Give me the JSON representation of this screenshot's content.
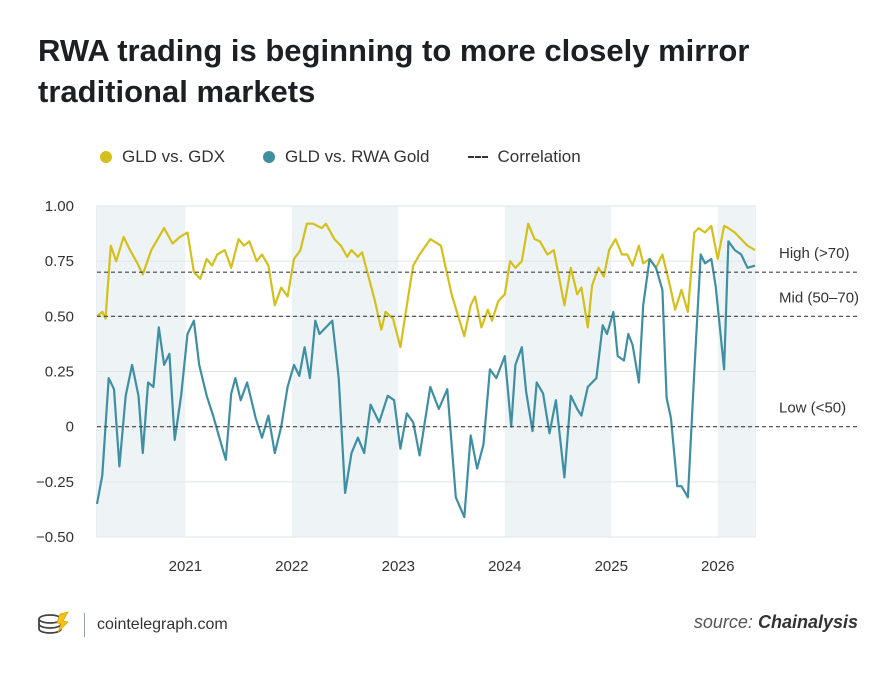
{
  "title": "RWA trading is beginning to more closely mirror traditional markets",
  "legend": [
    {
      "label": "GLD vs. GDX",
      "color": "#d4c01c",
      "kind": "dot"
    },
    {
      "label": "GLD vs. RWA Gold",
      "color": "#3f8fa3",
      "kind": "dot"
    },
    {
      "label": "Correlation",
      "color": "#333333",
      "kind": "dash"
    }
  ],
  "footer": {
    "site": "cointelegraph.com",
    "source_prefix": "source:",
    "source_name": "Chainalysis"
  },
  "chart_data": {
    "type": "line",
    "ylim": [
      -0.5,
      1.0
    ],
    "xlim": [
      2020.17,
      2026.35
    ],
    "y_ticks": [
      {
        "v": 1.0,
        "label": "1.00"
      },
      {
        "v": 0.75,
        "label": "0.75"
      },
      {
        "v": 0.5,
        "label": "0.50"
      },
      {
        "v": 0.25,
        "label": "0.25"
      },
      {
        "v": 0,
        "label": "0"
      },
      {
        "v": -0.25,
        "label": "−0.25"
      },
      {
        "v": -0.5,
        "label": "−0.50"
      }
    ],
    "x_ticks": [
      {
        "v": 2021,
        "label": "2021"
      },
      {
        "v": 2022,
        "label": "2022"
      },
      {
        "v": 2023,
        "label": "2023"
      },
      {
        "v": 2024,
        "label": "2024"
      },
      {
        "v": 2025,
        "label": "2025"
      },
      {
        "v": 2026,
        "label": "2026"
      }
    ],
    "shaded_years": [
      [
        2020.17,
        2021
      ],
      [
        2022,
        2023
      ],
      [
        2024,
        2025
      ],
      [
        2026,
        2026.35
      ]
    ],
    "reference_lines": [
      {
        "y": 0.7,
        "label": "High (>70)"
      },
      {
        "y": 0.5,
        "label": "Mid (50–70)"
      },
      {
        "y": 0,
        "label": "Low (<50)"
      }
    ],
    "series": [
      {
        "name": "GLD vs. GDX",
        "color": "#d4c01c",
        "x": [
          2020.17,
          2020.22,
          2020.25,
          2020.3,
          2020.35,
          2020.42,
          2020.48,
          2020.55,
          2020.6,
          2020.68,
          2020.74,
          2020.8,
          2020.88,
          2020.95,
          2021.02,
          2021.08,
          2021.14,
          2021.2,
          2021.25,
          2021.3,
          2021.37,
          2021.43,
          2021.5,
          2021.55,
          2021.6,
          2021.67,
          2021.72,
          2021.78,
          2021.84,
          2021.9,
          2021.96,
          2022.02,
          2022.08,
          2022.14,
          2022.2,
          2022.28,
          2022.32,
          2022.4,
          2022.46,
          2022.52,
          2022.56,
          2022.62,
          2022.66,
          2022.72,
          2022.78,
          2022.84,
          2022.88,
          2022.95,
          2023.02,
          2023.08,
          2023.14,
          2023.2,
          2023.3,
          2023.4,
          2023.5,
          2023.55,
          2023.62,
          2023.68,
          2023.72,
          2023.78,
          2023.84,
          2023.88,
          2023.94,
          2024.0,
          2024.05,
          2024.1,
          2024.16,
          2024.22,
          2024.28,
          2024.33,
          2024.4,
          2024.46,
          2024.52,
          2024.56,
          2024.62,
          2024.68,
          2024.72,
          2024.78,
          2024.82,
          2024.88,
          2024.93,
          2024.98,
          2025.04,
          2025.1,
          2025.15,
          2025.2,
          2025.26,
          2025.3,
          2025.36,
          2025.42,
          2025.48,
          2025.56,
          2025.6,
          2025.66,
          2025.72,
          2025.78,
          2025.82,
          2025.88,
          2025.94,
          2026.0,
          2026.06,
          2026.1,
          2026.16,
          2026.22,
          2026.28,
          2026.35
        ],
        "y": [
          0.5,
          0.52,
          0.49,
          0.82,
          0.75,
          0.86,
          0.8,
          0.74,
          0.69,
          0.8,
          0.85,
          0.9,
          0.83,
          0.86,
          0.88,
          0.7,
          0.67,
          0.76,
          0.73,
          0.78,
          0.8,
          0.72,
          0.85,
          0.82,
          0.84,
          0.75,
          0.78,
          0.73,
          0.55,
          0.63,
          0.59,
          0.76,
          0.8,
          0.92,
          0.92,
          0.9,
          0.92,
          0.85,
          0.82,
          0.77,
          0.8,
          0.77,
          0.79,
          0.68,
          0.57,
          0.44,
          0.52,
          0.49,
          0.36,
          0.55,
          0.73,
          0.78,
          0.85,
          0.82,
          0.6,
          0.52,
          0.41,
          0.55,
          0.59,
          0.45,
          0.53,
          0.48,
          0.57,
          0.6,
          0.75,
          0.72,
          0.75,
          0.92,
          0.85,
          0.84,
          0.78,
          0.8,
          0.65,
          0.55,
          0.72,
          0.6,
          0.63,
          0.45,
          0.64,
          0.72,
          0.68,
          0.8,
          0.85,
          0.78,
          0.78,
          0.73,
          0.82,
          0.74,
          0.76,
          0.72,
          0.78,
          0.62,
          0.53,
          0.62,
          0.52,
          0.88,
          0.9,
          0.88,
          0.91,
          0.76,
          0.91,
          0.9,
          0.88,
          0.85,
          0.82,
          0.8
        ]
      },
      {
        "name": "GLD vs. RWA Gold",
        "color": "#3f8fa3",
        "x": [
          2020.17,
          2020.22,
          2020.28,
          2020.33,
          2020.38,
          2020.44,
          2020.5,
          2020.56,
          2020.6,
          2020.65,
          2020.7,
          2020.75,
          2020.8,
          2020.85,
          2020.9,
          2020.96,
          2021.02,
          2021.08,
          2021.13,
          2021.2,
          2021.26,
          2021.32,
          2021.38,
          2021.43,
          2021.47,
          2021.52,
          2021.58,
          2021.62,
          2021.66,
          2021.72,
          2021.78,
          2021.84,
          2021.9,
          2021.96,
          2022.02,
          2022.07,
          2022.12,
          2022.17,
          2022.22,
          2022.26,
          2022.32,
          2022.38,
          2022.44,
          2022.5,
          2022.56,
          2022.62,
          2022.68,
          2022.74,
          2022.82,
          2022.9,
          2022.96,
          2023.02,
          2023.08,
          2023.14,
          2023.2,
          2023.3,
          2023.38,
          2023.46,
          2023.54,
          2023.62,
          2023.68,
          2023.74,
          2023.8,
          2023.86,
          2023.92,
          2024.0,
          2024.06,
          2024.1,
          2024.16,
          2024.2,
          2024.26,
          2024.3,
          2024.36,
          2024.42,
          2024.48,
          2024.56,
          2024.62,
          2024.68,
          2024.72,
          2024.78,
          2024.86,
          2024.92,
          2024.96,
          2025.02,
          2025.06,
          2025.12,
          2025.16,
          2025.2,
          2025.26,
          2025.3,
          2025.36,
          2025.42,
          2025.48,
          2025.52,
          2025.56,
          2025.62,
          2025.66,
          2025.72,
          2025.78,
          2025.84,
          2025.88,
          2025.94,
          2025.98,
          2026.06,
          2026.1,
          2026.16,
          2026.22,
          2026.28,
          2026.35
        ],
        "y": [
          -0.35,
          -0.22,
          0.22,
          0.17,
          -0.18,
          0.14,
          0.28,
          0.14,
          -0.12,
          0.2,
          0.18,
          0.45,
          0.28,
          0.33,
          -0.06,
          0.14,
          0.42,
          0.48,
          0.28,
          0.14,
          0.05,
          -0.05,
          -0.15,
          0.15,
          0.22,
          0.12,
          0.2,
          0.12,
          0.04,
          -0.05,
          0.05,
          -0.12,
          0.0,
          0.18,
          0.28,
          0.23,
          0.36,
          0.22,
          0.48,
          0.42,
          0.45,
          0.48,
          0.22,
          -0.3,
          -0.12,
          -0.05,
          -0.12,
          0.1,
          0.02,
          0.14,
          0.12,
          -0.1,
          0.06,
          0.02,
          -0.13,
          0.18,
          0.08,
          0.17,
          -0.32,
          -0.41,
          -0.04,
          -0.19,
          -0.08,
          0.26,
          0.22,
          0.32,
          0.0,
          0.28,
          0.36,
          0.16,
          -0.02,
          0.2,
          0.15,
          -0.03,
          0.12,
          -0.23,
          0.14,
          0.08,
          0.05,
          0.18,
          0.22,
          0.46,
          0.42,
          0.52,
          0.32,
          0.3,
          0.42,
          0.37,
          0.2,
          0.55,
          0.76,
          0.72,
          0.62,
          0.13,
          0.04,
          -0.27,
          -0.27,
          -0.32,
          0.25,
          0.78,
          0.74,
          0.76,
          0.64,
          0.26,
          0.84,
          0.8,
          0.78,
          0.72,
          0.73
        ]
      }
    ]
  }
}
